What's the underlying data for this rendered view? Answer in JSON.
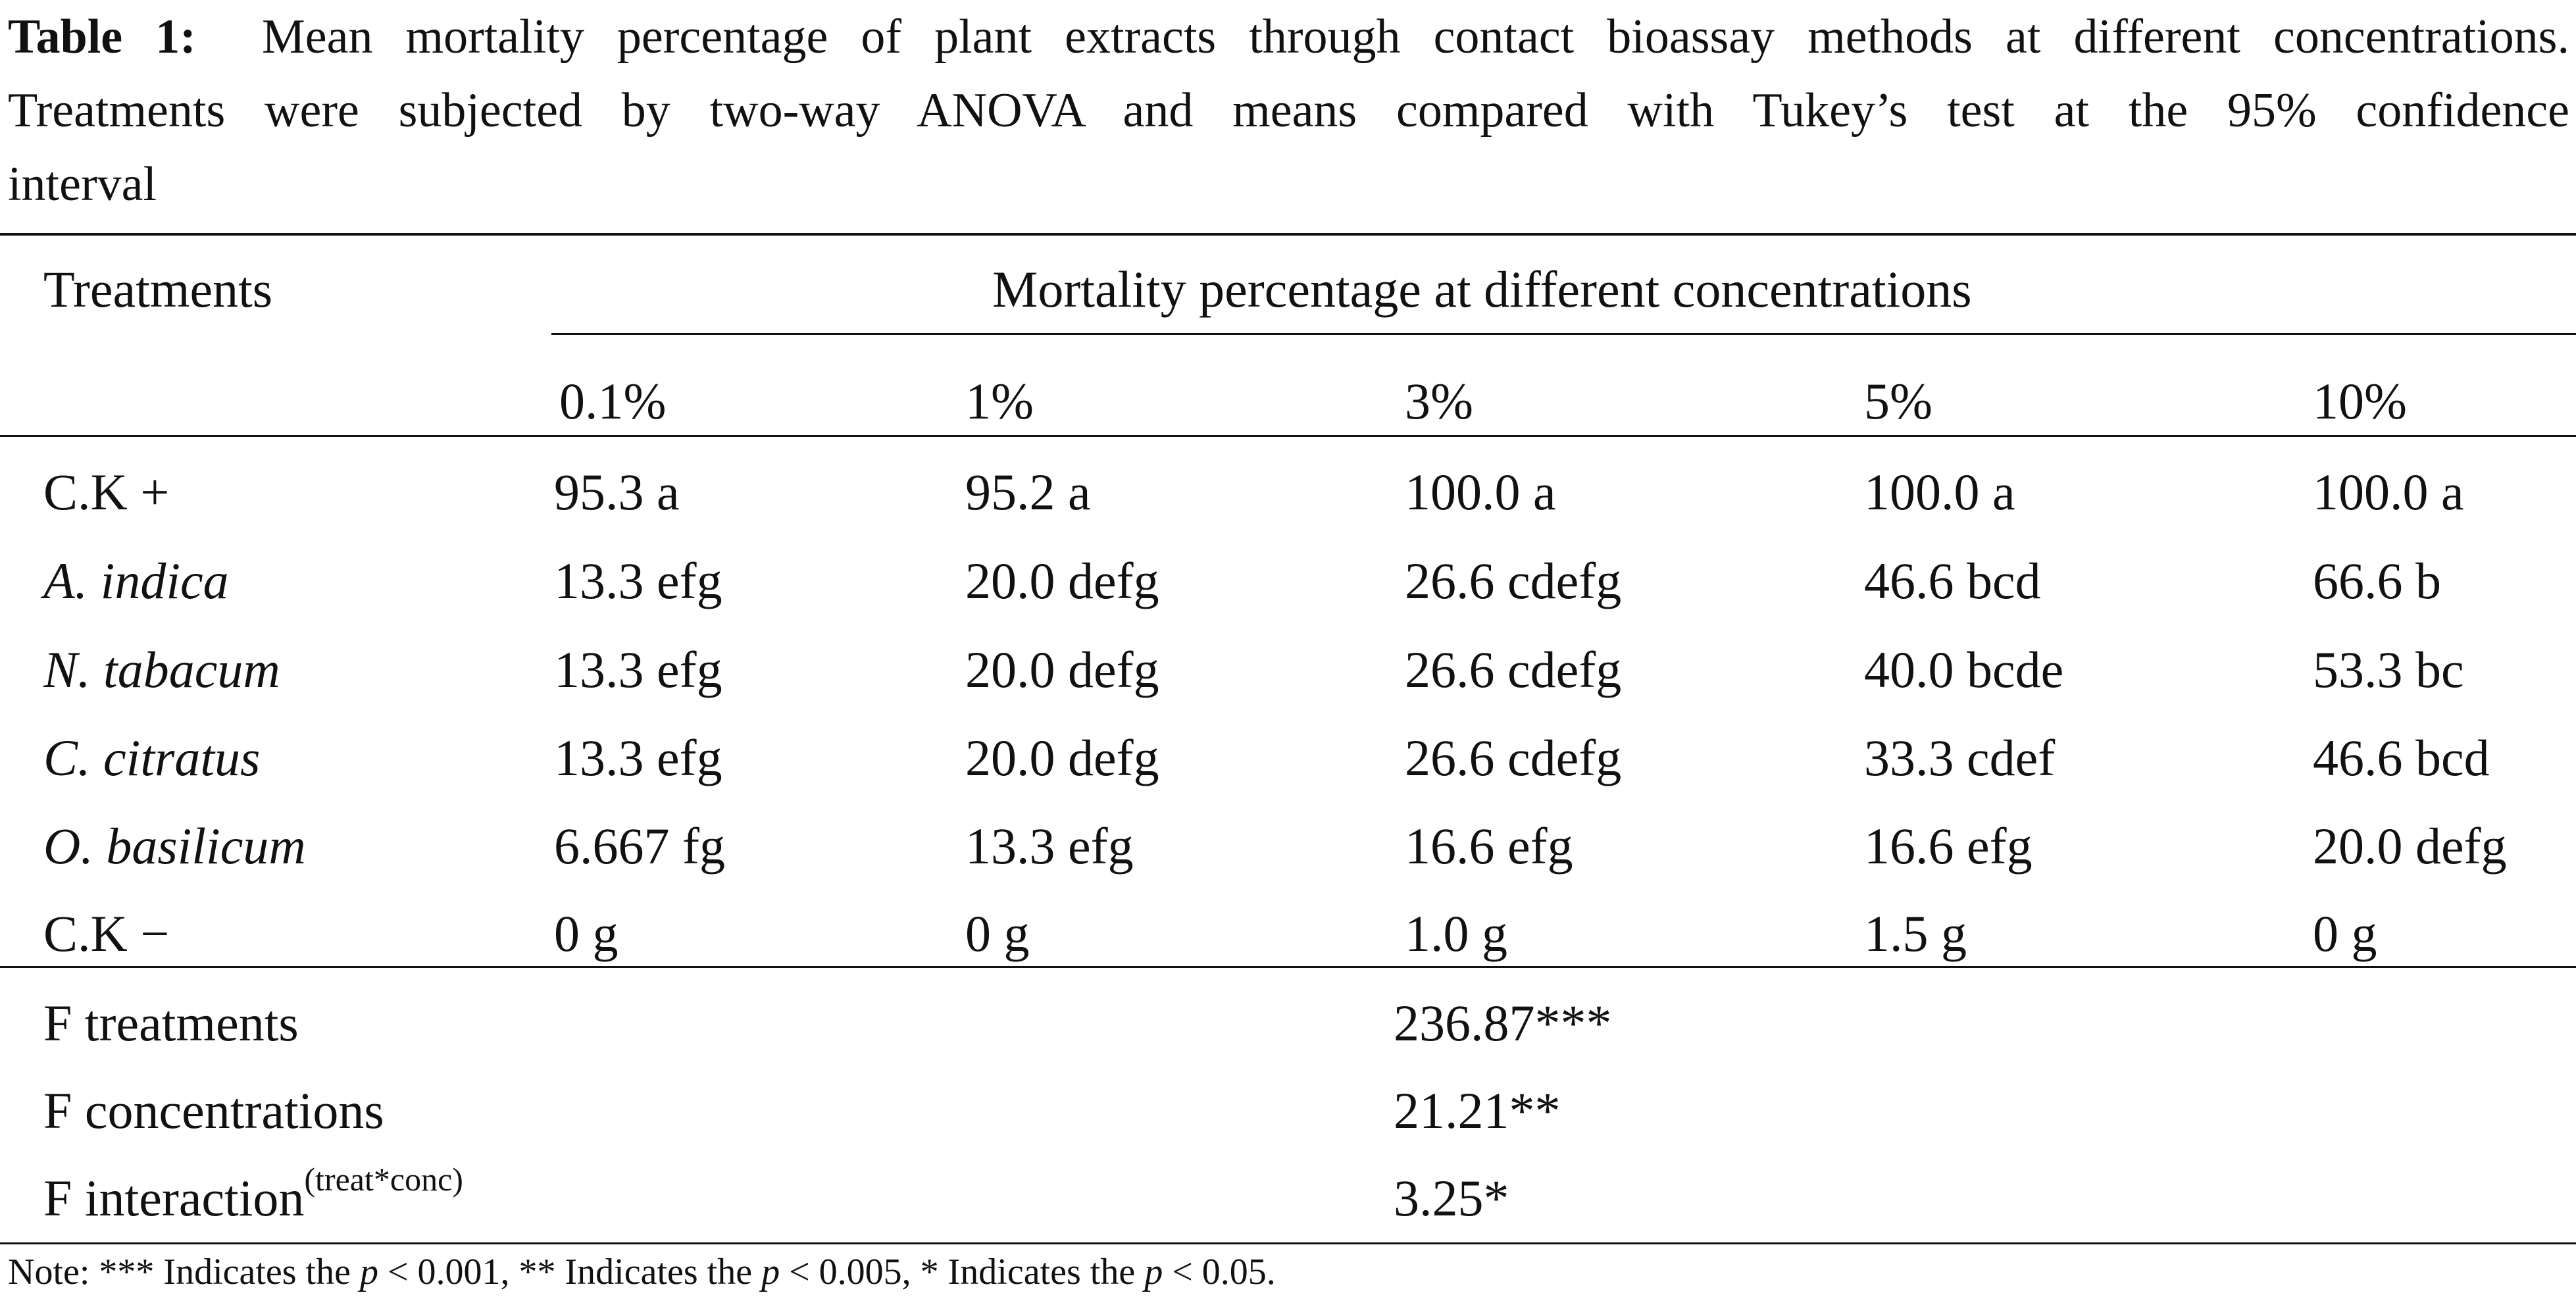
{
  "caption": {
    "label": "Table 1:",
    "line1": "Mean mortality percentage of plant extracts through contact bioassay methods at different concentrations.",
    "line2": "Treatments were subjected by two-way ANOVA and means compared with Tukey’s test at the 95% confidence",
    "line3": "interval"
  },
  "table": {
    "row_header": "Treatments",
    "group_header": "Mortality percentage at different concentrations",
    "concentrations": [
      "0.1%",
      "1%",
      "3%",
      "5%",
      "10%"
    ],
    "rows": [
      {
        "treatment": "C.K +",
        "values": [
          "95.3 a",
          "95.2 a",
          "100.0 a",
          "100.0 a",
          "100.0 a"
        ]
      },
      {
        "treatment": "A. indica",
        "values": [
          "13.3 efg",
          "20.0 defg",
          "26.6 cdefg",
          "46.6 bcd",
          "66.6 b"
        ]
      },
      {
        "treatment": "N. tabacum",
        "values": [
          "13.3 efg",
          "20.0 defg",
          "26.6 cdefg",
          "40.0 bcde",
          "53.3 bc"
        ]
      },
      {
        "treatment": "C. citratus",
        "values": [
          "13.3 efg",
          "20.0 defg",
          "26.6 cdefg",
          "33.3 cdef",
          "46.6 bcd"
        ]
      },
      {
        "treatment": "O. basilicum",
        "values": [
          "6.667 fg",
          "13.3 efg",
          "16.6 efg",
          "16.6 efg",
          "20.0 defg"
        ]
      },
      {
        "treatment": "C.K −",
        "values": [
          "0 g",
          "0 g",
          "1.0 g",
          "1.5 g",
          "0 g"
        ]
      }
    ],
    "stats": [
      {
        "label": "F treatments",
        "value": "236.87***"
      },
      {
        "label": "F concentrations",
        "value": "21.21**"
      },
      {
        "label": "F interaction",
        "label_sup": "(treat*conc)",
        "value": "3.25*"
      }
    ]
  },
  "note": {
    "prefix": "Note: *** Indicates the",
    "p": "p",
    "part1": "< 0.001, ** Indicates the",
    "part2": "< 0.005, * Indicates the",
    "part3": "< 0.05."
  }
}
